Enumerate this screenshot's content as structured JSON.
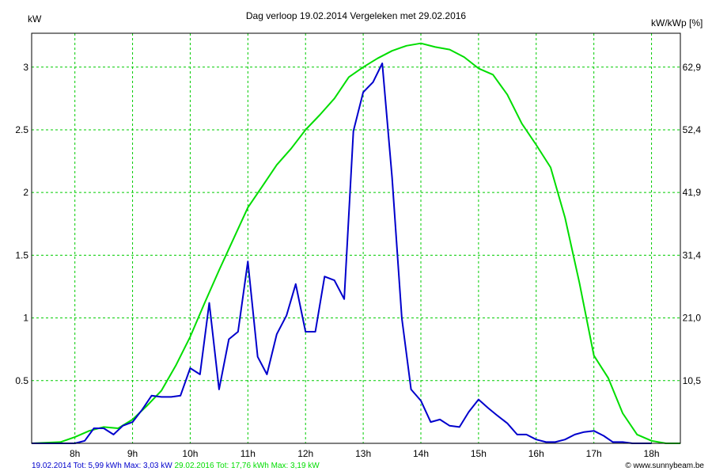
{
  "chart_data": {
    "type": "line",
    "title": "Dag  verloop 19.02.2014   Vergeleken met 29.02.2016",
    "ylabel_left": "kW",
    "ylabel_right": "kW/kWp [%]",
    "x_ticks": [
      "8h",
      "9h",
      "10h",
      "11h",
      "12h",
      "13h",
      "14h",
      "15h",
      "16h",
      "17h",
      "18h"
    ],
    "x_range": [
      7.25,
      18.5
    ],
    "y_range": [
      0,
      3.27
    ],
    "y_ticks_left": [
      "0.5",
      "1",
      "1.5",
      "2",
      "2.5",
      "3"
    ],
    "y_ticks_left_values": [
      0.5,
      1,
      1.5,
      2,
      2.5,
      3
    ],
    "y_ticks_right": [
      "10,5",
      "21,0",
      "31,4",
      "41,9",
      "52,4",
      "62,9"
    ],
    "grid": true,
    "colors": {
      "series_1": "#0000cc",
      "series_2": "#00dd00",
      "grid": "#00cc00"
    },
    "series": [
      {
        "name": "19.02.2014",
        "color": "#0000cc",
        "x": [
          7.25,
          7.5,
          7.75,
          8.0,
          8.17,
          8.33,
          8.5,
          8.67,
          8.83,
          9.0,
          9.17,
          9.33,
          9.5,
          9.67,
          9.83,
          10.0,
          10.17,
          10.33,
          10.5,
          10.67,
          10.83,
          11.0,
          11.17,
          11.33,
          11.5,
          11.67,
          11.83,
          12.0,
          12.17,
          12.33,
          12.5,
          12.67,
          12.83,
          13.0,
          13.17,
          13.33,
          13.5,
          13.67,
          13.83,
          14.0,
          14.17,
          14.33,
          14.5,
          14.67,
          14.83,
          15.0,
          15.17,
          15.33,
          15.5,
          15.67,
          15.83,
          16.0,
          16.17,
          16.33,
          16.5,
          16.67,
          16.83,
          17.0,
          17.17,
          17.33,
          17.5,
          17.67,
          17.83,
          18.0
        ],
        "y": [
          0,
          0,
          0,
          0,
          0.02,
          0.12,
          0.12,
          0.07,
          0.14,
          0.17,
          0.27,
          0.38,
          0.37,
          0.37,
          0.38,
          0.6,
          0.55,
          1.12,
          0.43,
          0.83,
          0.89,
          1.45,
          0.69,
          0.55,
          0.87,
          1.02,
          1.27,
          0.89,
          0.89,
          1.33,
          1.3,
          1.15,
          2.49,
          2.8,
          2.88,
          3.03,
          2.12,
          1.0,
          0.43,
          0.34,
          0.17,
          0.19,
          0.14,
          0.13,
          0.25,
          0.35,
          0.28,
          0.22,
          0.16,
          0.07,
          0.07,
          0.03,
          0.01,
          0.01,
          0.03,
          0.07,
          0.09,
          0.1,
          0.06,
          0.01,
          0.01,
          0,
          0,
          0
        ]
      },
      {
        "name": "29.02.2016",
        "color": "#00dd00",
        "x": [
          7.25,
          7.75,
          8.0,
          8.25,
          8.5,
          8.75,
          9.0,
          9.25,
          9.5,
          9.75,
          10.0,
          10.25,
          10.5,
          10.75,
          11.0,
          11.25,
          11.5,
          11.75,
          12.0,
          12.25,
          12.5,
          12.75,
          13.0,
          13.25,
          13.5,
          13.75,
          14.0,
          14.25,
          14.5,
          14.75,
          15.0,
          15.25,
          15.5,
          15.75,
          16.0,
          16.25,
          16.5,
          16.75,
          17.0,
          17.25,
          17.5,
          17.75,
          18.0,
          18.25,
          18.5
        ],
        "y": [
          0,
          0.01,
          0.05,
          0.1,
          0.13,
          0.12,
          0.19,
          0.3,
          0.42,
          0.62,
          0.85,
          1.12,
          1.38,
          1.63,
          1.88,
          2.05,
          2.22,
          2.35,
          2.5,
          2.62,
          2.75,
          2.92,
          3.0,
          3.07,
          3.13,
          3.17,
          3.19,
          3.16,
          3.14,
          3.08,
          2.99,
          2.94,
          2.78,
          2.55,
          2.38,
          2.2,
          1.8,
          1.28,
          0.7,
          0.52,
          0.24,
          0.07,
          0.02,
          0,
          0
        ]
      }
    ]
  },
  "footer": {
    "series_1_summary": "19.02.2014 Tot: 5,99 kWh Max: 3,03 kW",
    "series_2_summary": "29.02.2016 Tot: 17,76 kWh Max: 3,19 kW",
    "credit": "© www.sunnybeam.be"
  }
}
